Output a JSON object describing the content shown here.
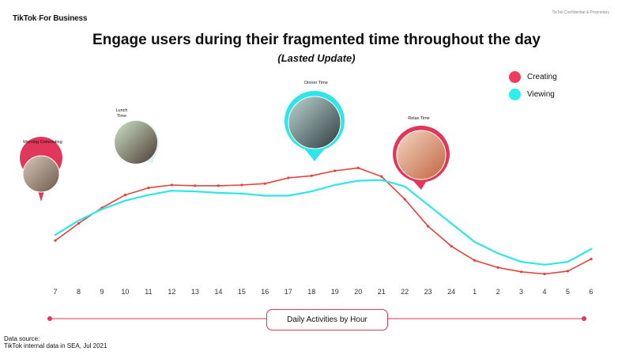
{
  "brand": {
    "logo": "TikTok",
    "logo_suffix": "For Business"
  },
  "confidential": "TikTok Confidential & Proprietary",
  "chart_data": {
    "type": "line",
    "title": "Engage users during their fragmented time throughout the day",
    "subtitle": "(Lasted Update)",
    "xlabel": "Daily Activities by Hour",
    "categories": [
      "7",
      "8",
      "9",
      "10",
      "11",
      "12",
      "13",
      "14",
      "15",
      "16",
      "17",
      "18",
      "19",
      "20",
      "21",
      "22",
      "23",
      "24",
      "1",
      "2",
      "3",
      "4",
      "5",
      "6"
    ],
    "series": [
      {
        "name": "Creating",
        "color": "#e8403a",
        "values": [
          31,
          43,
          54,
          63,
          68,
          70,
          69.5,
          69.5,
          70,
          71,
          75,
          76.5,
          80,
          82,
          76,
          60,
          41,
          27,
          17,
          12,
          9,
          7.5,
          9.5,
          18
        ]
      },
      {
        "name": "Viewing",
        "color": "#2fe6e6",
        "values": [
          35,
          45,
          53,
          59,
          63,
          66,
          65.5,
          64.5,
          64,
          62.5,
          62.5,
          65.5,
          70,
          73,
          73.5,
          69,
          56,
          43,
          30,
          22,
          16,
          14,
          16,
          25
        ]
      }
    ],
    "ylim": [
      0,
      100
    ],
    "legend_position": "top-right",
    "grid": false
  },
  "legend": [
    {
      "label": "Creating",
      "color": "#ee3d5a"
    },
    {
      "label": "Viewing",
      "color": "#2ef0ea"
    }
  ],
  "annotations": [
    {
      "label": "Morning Commuting"
    },
    {
      "label": "Lunch Time"
    },
    {
      "label": "Dinner Time"
    },
    {
      "label": "Relax Time"
    }
  ],
  "source": {
    "line1": "Data source:",
    "line2": "TikTok internal data in SEA, Jul 2021"
  }
}
